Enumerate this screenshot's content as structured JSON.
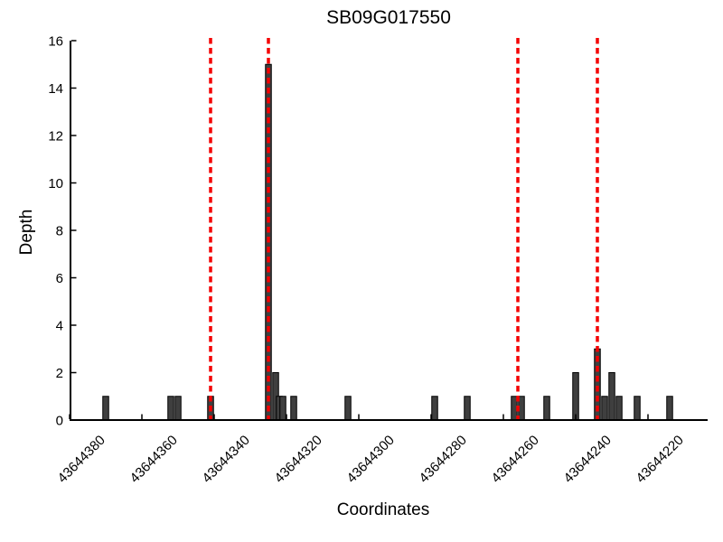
{
  "chart_data": {
    "type": "bar",
    "title": "SB09G017550",
    "xlabel": "Coordinates",
    "ylabel": "Depth",
    "ylim": [
      0,
      16
    ],
    "y_ticks": [
      0,
      2,
      4,
      6,
      8,
      10,
      12,
      14,
      16
    ],
    "x_ticks": [
      43644380,
      43644360,
      43644340,
      43644320,
      43644300,
      43644280,
      43644260,
      43644240,
      43644220
    ],
    "x_axis_reversed": true,
    "x_tick_label_rotation_deg": 45,
    "grid": false,
    "tick_direction": "in",
    "legend": "none",
    "bars": [
      {
        "coord": 43644370,
        "depth": 1
      },
      {
        "coord": 43644352,
        "depth": 1
      },
      {
        "coord": 43644350,
        "depth": 1
      },
      {
        "coord": 43644341,
        "depth": 1
      },
      {
        "coord": 43644325,
        "depth": 15
      },
      {
        "coord": 43644323,
        "depth": 2
      },
      {
        "coord": 43644322,
        "depth": 1
      },
      {
        "coord": 43644321,
        "depth": 1
      },
      {
        "coord": 43644318,
        "depth": 1
      },
      {
        "coord": 43644303,
        "depth": 1
      },
      {
        "coord": 43644279,
        "depth": 1
      },
      {
        "coord": 43644270,
        "depth": 1
      },
      {
        "coord": 43644257,
        "depth": 1
      },
      {
        "coord": 43644255,
        "depth": 1
      },
      {
        "coord": 43644248,
        "depth": 1
      },
      {
        "coord": 43644240,
        "depth": 2
      },
      {
        "coord": 43644234,
        "depth": 3
      },
      {
        "coord": 43644232,
        "depth": 1
      },
      {
        "coord": 43644230,
        "depth": 2
      },
      {
        "coord": 43644228,
        "depth": 1
      },
      {
        "coord": 43644223,
        "depth": 1
      },
      {
        "coord": 43644214,
        "depth": 1
      }
    ],
    "red_dashed_lines": [
      43644341,
      43644325,
      43644256,
      43644234
    ],
    "colors": {
      "bar_fill": "#3f3f3f",
      "bar_edge": "#000000",
      "marker_line": "#f40000",
      "axis": "#000000",
      "background": "#ffffff"
    }
  }
}
